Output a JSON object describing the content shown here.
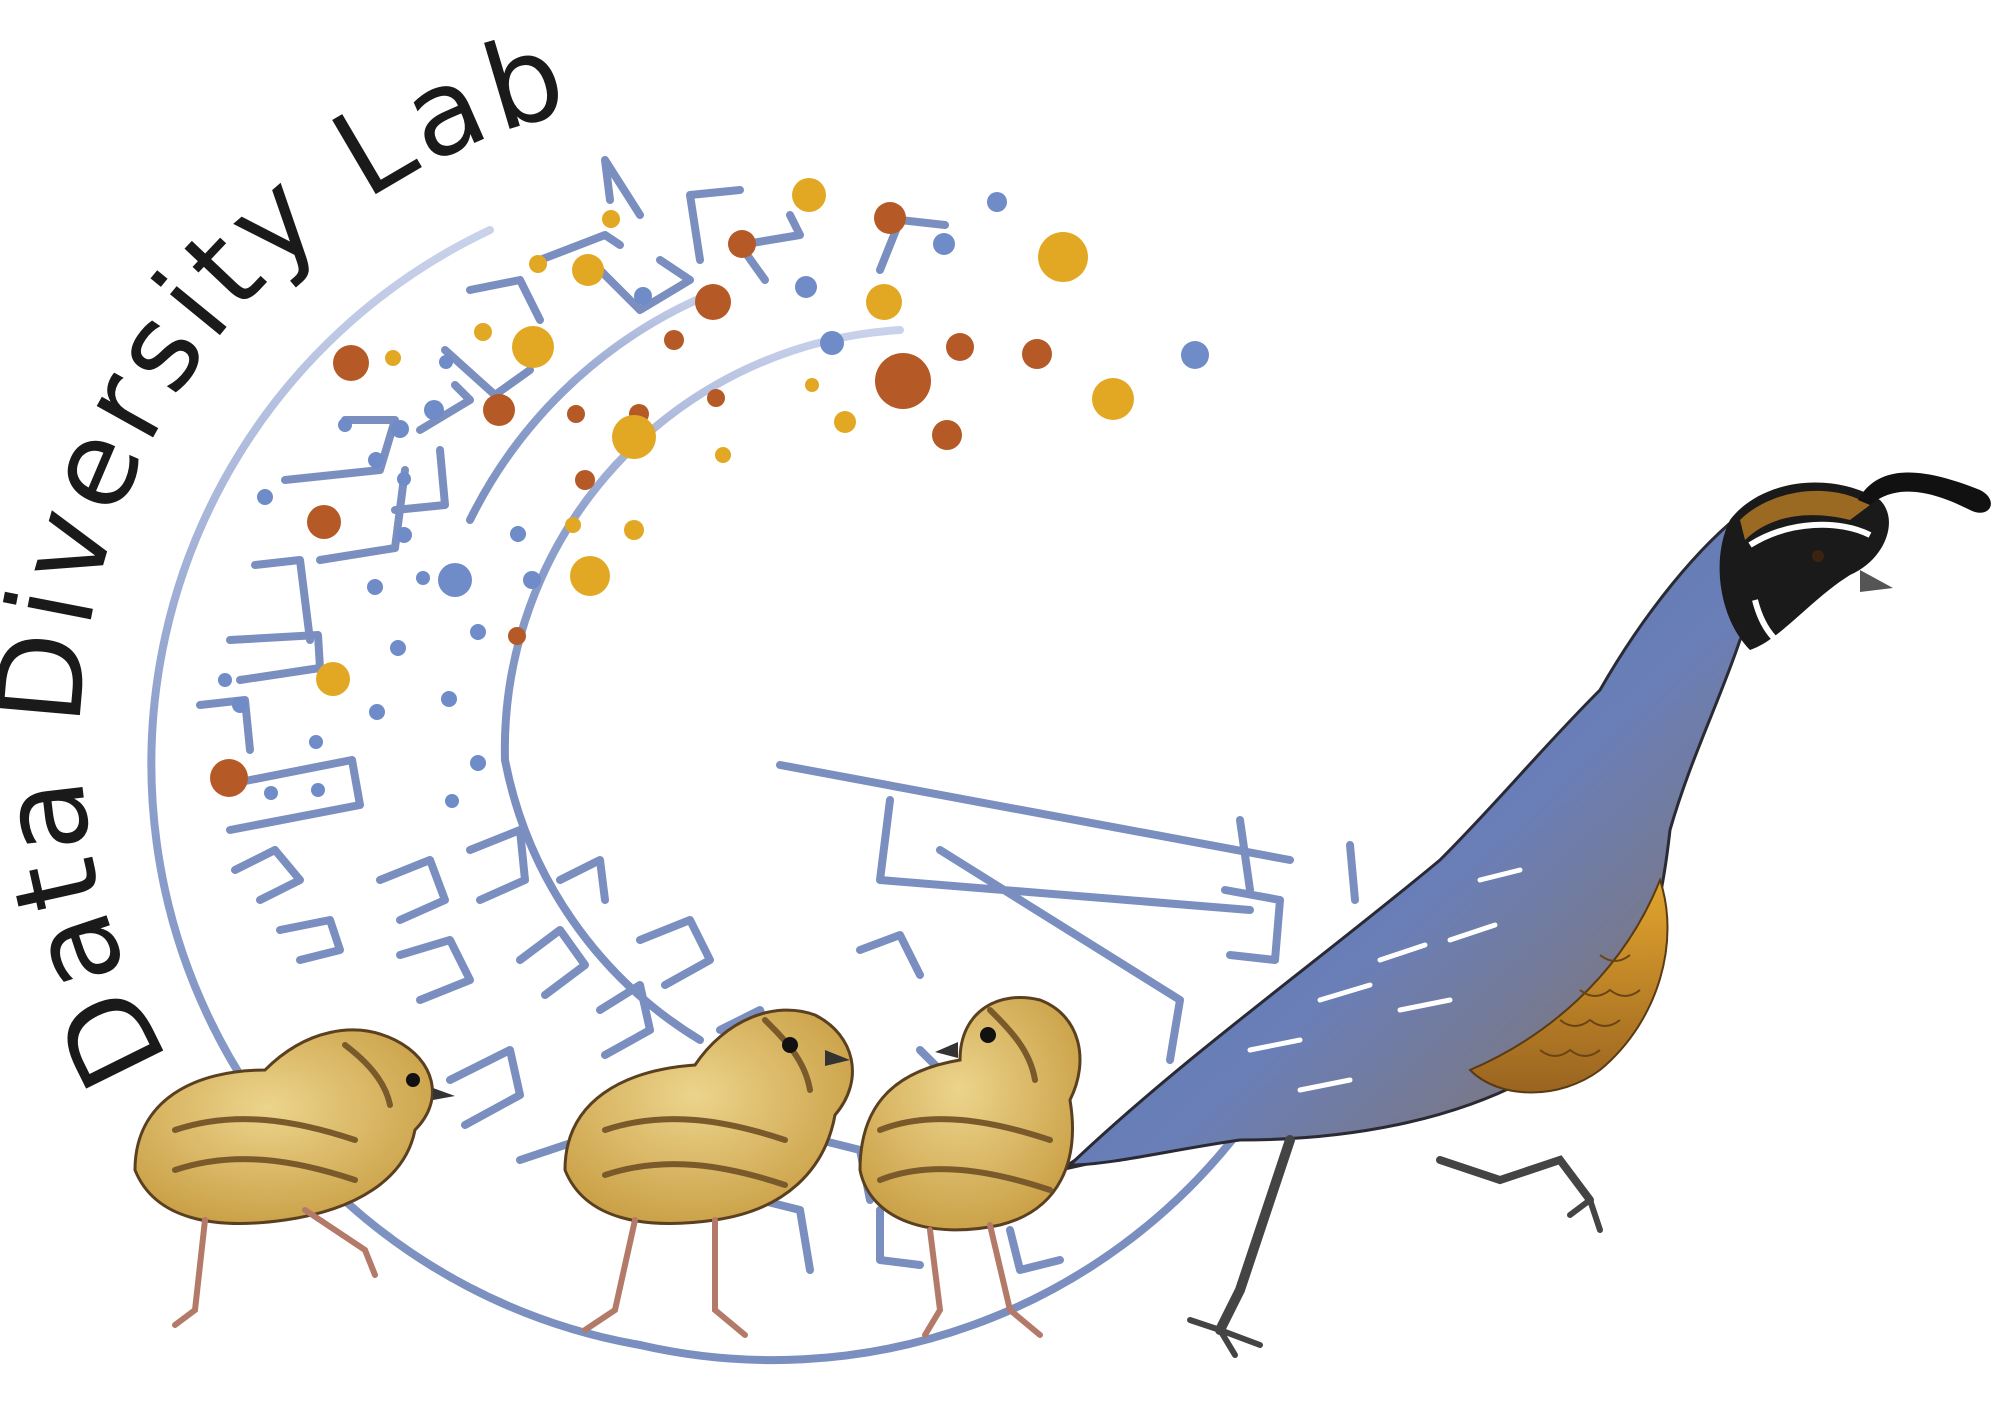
{
  "logo": {
    "title": "Data Diversity Lab"
  },
  "colors": {
    "tree": "#7a8fbf",
    "dot_blue": "#6f8cc9",
    "dot_orange": "#b55a26",
    "dot_gold": "#e3a823",
    "text": "#1a1a1a",
    "quail_body": "#5b74b0",
    "quail_belly": "#c88e2a",
    "chick_body": "#d8b45a",
    "chick_stripe": "#7a5a2a"
  },
  "illustration": {
    "icons": [
      "phylogenetic-tree-icon",
      "adult-quail-icon",
      "quail-chick-icon"
    ]
  }
}
